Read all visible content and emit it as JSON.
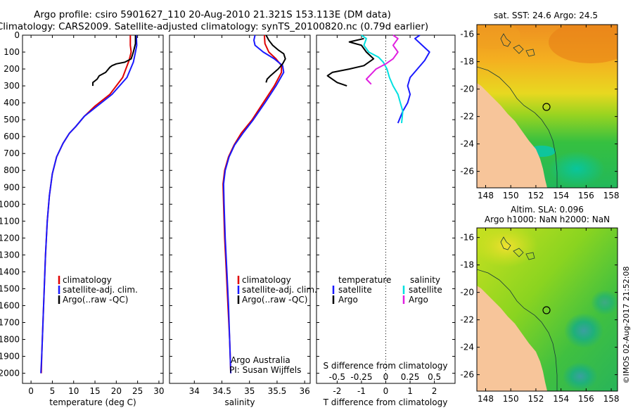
{
  "title_line1": "Argo profile: csiro 5901627_110 20-Aug-2010 21.321S 153.113E (DM data)",
  "title_line2": "Climatology: CARS2009. Satellite-adjusted climatology: synTS_20100820.nc (0.79d earlier)",
  "colors": {
    "climatology": "#e00000",
    "satellite": "#1a1aff",
    "argo": "#000000",
    "cyan": "#00e0e0",
    "magenta": "#e020e0",
    "land": "#f7c59a"
  },
  "depth_ticks": [
    0,
    100,
    200,
    300,
    400,
    500,
    600,
    700,
    800,
    900,
    1000,
    1100,
    1200,
    1300,
    1400,
    1500,
    1600,
    1700,
    1800,
    1900,
    2000
  ],
  "chart_data": [
    {
      "type": "line",
      "id": "temperature",
      "xlabel": "temperature (deg C)",
      "ylabel": "",
      "xlim": [
        -2,
        31
      ],
      "ylim": [
        2060,
        0
      ],
      "xticks": [
        "0",
        "5",
        "10",
        "15",
        "20",
        "25",
        "30"
      ],
      "legend": [
        "climatology",
        "satellite-adj. clim.",
        "Argo(..raw -QC)"
      ],
      "series": [
        {
          "name": "climatology",
          "color": "#e00000",
          "points": [
            [
              23.3,
              0
            ],
            [
              23.3,
              30
            ],
            [
              23.3,
              60
            ],
            [
              23.5,
              100
            ],
            [
              23.0,
              150
            ],
            [
              21.5,
              250
            ],
            [
              18.5,
              350
            ],
            [
              15.0,
              420
            ],
            [
              12.5,
              480
            ],
            [
              10.5,
              540
            ],
            [
              9.0,
              580
            ],
            [
              7.5,
              640
            ],
            [
              6.0,
              720
            ],
            [
              5.0,
              820
            ],
            [
              4.3,
              950
            ],
            [
              3.8,
              1100
            ],
            [
              3.4,
              1300
            ],
            [
              3.1,
              1500
            ],
            [
              2.8,
              1700
            ],
            [
              2.5,
              1900
            ],
            [
              2.4,
              2000
            ]
          ]
        },
        {
          "name": "satellite-adj. clim.",
          "color": "#1a1aff",
          "points": [
            [
              24.7,
              0
            ],
            [
              24.8,
              60
            ],
            [
              24.5,
              100
            ],
            [
              24.0,
              160
            ],
            [
              22.5,
              250
            ],
            [
              19.0,
              350
            ],
            [
              15.5,
              420
            ],
            [
              12.5,
              480
            ],
            [
              10.5,
              540
            ],
            [
              9.0,
              580
            ],
            [
              7.5,
              640
            ],
            [
              6.0,
              720
            ],
            [
              5.0,
              820
            ],
            [
              4.3,
              950
            ],
            [
              3.8,
              1100
            ],
            [
              3.4,
              1300
            ],
            [
              3.1,
              1500
            ],
            [
              2.8,
              1700
            ],
            [
              2.5,
              1900
            ],
            [
              2.3,
              2000
            ]
          ]
        },
        {
          "name": "Argo(..raw -QC)",
          "color": "#000000",
          "points": [
            [
              24.5,
              0
            ],
            [
              24.5,
              50
            ],
            [
              24.0,
              100
            ],
            [
              23.5,
              140
            ],
            [
              22.0,
              160
            ],
            [
              20.0,
              170
            ],
            [
              19.0,
              180
            ],
            [
              18.5,
              190
            ],
            [
              17.5,
              220
            ],
            [
              16.0,
              240
            ],
            [
              15.5,
              260
            ],
            [
              14.5,
              280
            ],
            [
              14.5,
              300
            ]
          ]
        }
      ]
    },
    {
      "type": "line",
      "id": "salinity",
      "xlabel": "salinity",
      "ylabel": "",
      "xlim": [
        33.55,
        36.1
      ],
      "ylim": [
        2060,
        0
      ],
      "xticks": [
        "34",
        "34.5",
        "35",
        "35.5",
        "36"
      ],
      "legend": [
        "climatology",
        "satellite-adj. clim.",
        "Argo(..raw -QC)"
      ],
      "annotation": [
        "Argo Australia",
        "PI: Susan Wijffels"
      ],
      "series": [
        {
          "name": "climatology",
          "color": "#e00000",
          "points": [
            [
              35.27,
              0
            ],
            [
              35.28,
              50
            ],
            [
              35.35,
              100
            ],
            [
              35.48,
              140
            ],
            [
              35.58,
              180
            ],
            [
              35.58,
              220
            ],
            [
              35.45,
              300
            ],
            [
              35.25,
              400
            ],
            [
              35.05,
              500
            ],
            [
              34.85,
              580
            ],
            [
              34.72,
              650
            ],
            [
              34.62,
              720
            ],
            [
              34.55,
              800
            ],
            [
              34.52,
              880
            ],
            [
              34.53,
              1000
            ],
            [
              34.55,
              1200
            ],
            [
              34.58,
              1400
            ],
            [
              34.61,
              1600
            ],
            [
              34.64,
              1800
            ],
            [
              34.66,
              2000
            ]
          ]
        },
        {
          "name": "satellite-adj. clim.",
          "color": "#1a1aff",
          "points": [
            [
              35.1,
              0
            ],
            [
              35.08,
              30
            ],
            [
              35.1,
              60
            ],
            [
              35.25,
              100
            ],
            [
              35.45,
              140
            ],
            [
              35.6,
              180
            ],
            [
              35.62,
              220
            ],
            [
              35.48,
              300
            ],
            [
              35.28,
              400
            ],
            [
              35.07,
              500
            ],
            [
              34.88,
              580
            ],
            [
              34.73,
              650
            ],
            [
              34.63,
              720
            ],
            [
              34.56,
              800
            ],
            [
              34.53,
              880
            ],
            [
              34.54,
              1000
            ],
            [
              34.56,
              1200
            ],
            [
              34.59,
              1400
            ],
            [
              34.62,
              1600
            ],
            [
              34.64,
              1800
            ],
            [
              34.66,
              2000
            ]
          ]
        },
        {
          "name": "Argo(..raw -QC)",
          "color": "#000000",
          "points": [
            [
              35.3,
              0
            ],
            [
              35.35,
              30
            ],
            [
              35.42,
              60
            ],
            [
              35.53,
              90
            ],
            [
              35.62,
              110
            ],
            [
              35.65,
              140
            ],
            [
              35.6,
              170
            ],
            [
              35.52,
              200
            ],
            [
              35.45,
              220
            ],
            [
              35.38,
              240
            ],
            [
              35.32,
              260
            ],
            [
              35.3,
              280
            ]
          ]
        }
      ]
    },
    {
      "type": "line",
      "id": "differences",
      "xlabel": "T difference from climatology",
      "x2label": "S difference from climatology",
      "xlim": [
        -2.85,
        2.85
      ],
      "ylim": [
        2060,
        0
      ],
      "xticks": [
        "-2",
        "-1",
        "0",
        "1",
        "2"
      ],
      "x2ticks": [
        "-0.5",
        "-0.25",
        "0",
        "0.25",
        "0.5"
      ],
      "legend_title_t": "temperature",
      "legend_title_s": "salinity",
      "legend_t": [
        "satellite",
        "Argo"
      ],
      "legend_s": [
        "satellite",
        "Argo"
      ],
      "series": [
        {
          "name": "T satellite",
          "color": "#1a1aff",
          "points": [
            [
              1.4,
              0
            ],
            [
              1.2,
              20
            ],
            [
              1.5,
              60
            ],
            [
              1.8,
              100
            ],
            [
              1.6,
              150
            ],
            [
              1.3,
              200
            ],
            [
              1.0,
              250
            ],
            [
              0.9,
              300
            ],
            [
              1.0,
              350
            ],
            [
              0.9,
              400
            ],
            [
              0.7,
              450
            ],
            [
              0.5,
              520
            ]
          ]
        },
        {
          "name": "T Argo",
          "color": "#000000",
          "points": [
            [
              -0.9,
              20
            ],
            [
              -1.5,
              40
            ],
            [
              -1.0,
              60
            ],
            [
              -0.8,
              100
            ],
            [
              -0.5,
              140
            ],
            [
              -0.9,
              180
            ],
            [
              -1.5,
              200
            ],
            [
              -2.2,
              220
            ],
            [
              -2.4,
              240
            ],
            [
              -2.0,
              280
            ],
            [
              -1.6,
              300
            ]
          ]
        },
        {
          "name": "S satellite",
          "color": "#00e0e0",
          "points": [
            [
              -1.0,
              0
            ],
            [
              -0.8,
              20
            ],
            [
              -0.9,
              60
            ],
            [
              -0.7,
              100
            ],
            [
              -0.3,
              130
            ],
            [
              -0.1,
              160
            ],
            [
              0.05,
              200
            ],
            [
              0.15,
              250
            ],
            [
              0.3,
              300
            ],
            [
              0.5,
              350
            ],
            [
              0.6,
              400
            ],
            [
              0.7,
              450
            ],
            [
              0.65,
              520
            ]
          ]
        },
        {
          "name": "S Argo",
          "color": "#e020e0",
          "points": [
            [
              0.3,
              0
            ],
            [
              0.5,
              20
            ],
            [
              0.3,
              60
            ],
            [
              0.5,
              100
            ],
            [
              0.3,
              140
            ],
            [
              0.0,
              170
            ],
            [
              -0.4,
              200
            ],
            [
              -0.6,
              230
            ],
            [
              -0.8,
              260
            ],
            [
              -0.6,
              290
            ]
          ]
        }
      ]
    },
    {
      "type": "heatmap",
      "id": "sst_map",
      "title": "sat. SST: 24.6 Argo: 24.5",
      "xticks": [
        "148",
        "150",
        "152",
        "154",
        "156",
        "158"
      ],
      "yticks": [
        "-16",
        "-18",
        "-20",
        "-22",
        "-24",
        "-26"
      ]
    },
    {
      "type": "heatmap",
      "id": "sla_map",
      "title_line1": "Altim. SLA: 0.096",
      "title_line2": "Argo h1000: NaN h2000: NaN",
      "xticks": [
        "148",
        "150",
        "152",
        "154",
        "156",
        "158"
      ],
      "yticks": [
        "-16",
        "-18",
        "-20",
        "-22",
        "-24",
        "-26"
      ]
    }
  ],
  "footer_credit": "©IMOS 02-Aug-2017 21:52:08"
}
